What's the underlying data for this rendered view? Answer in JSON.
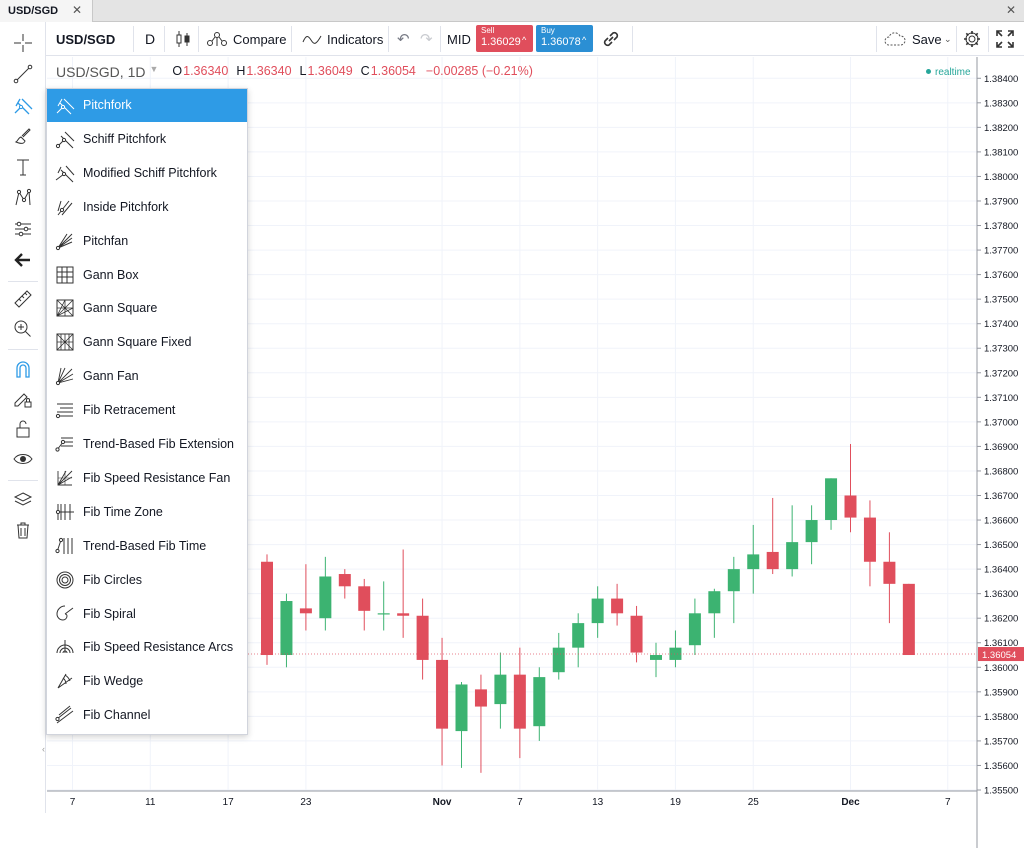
{
  "tab": {
    "title": "USD/SGD",
    "close": "✕"
  },
  "window_close": "✕",
  "toolbar": {
    "symbol": "USD/SGD",
    "interval": "D",
    "compare_label": "Compare",
    "indicators_label": "Indicators",
    "price_mode": "MID",
    "sell_label": "Sell",
    "sell_price": "1.36029",
    "buy_label": "Buy",
    "buy_price": "1.36078",
    "save_label": "Save"
  },
  "legend": {
    "title": "USD/SGD, 1D",
    "o_key": "O",
    "o_val": "1.36340",
    "h_key": "H",
    "h_val": "1.36340",
    "l_key": "L",
    "l_val": "1.36049",
    "c_key": "C",
    "c_val": "1.36054",
    "change": "−0.00285 (−0.21%)",
    "realtime": "realtime"
  },
  "menu": {
    "items": [
      {
        "label": "Pitchfork",
        "icon": "pitchfork-icon",
        "active": true
      },
      {
        "label": "Schiff Pitchfork",
        "icon": "schiff-pitchfork-icon"
      },
      {
        "label": "Modified Schiff Pitchfork",
        "icon": "modified-schiff-pitchfork-icon"
      },
      {
        "label": "Inside Pitchfork",
        "icon": "inside-pitchfork-icon"
      },
      {
        "label": "Pitchfan",
        "icon": "pitchfan-icon"
      },
      {
        "label": "Gann Box",
        "icon": "gann-box-icon"
      },
      {
        "label": "Gann Square",
        "icon": "gann-square-icon"
      },
      {
        "label": "Gann Square Fixed",
        "icon": "gann-square-fixed-icon"
      },
      {
        "label": "Gann Fan",
        "icon": "gann-fan-icon"
      },
      {
        "label": "Fib Retracement",
        "icon": "fib-retracement-icon"
      },
      {
        "label": "Trend-Based Fib Extension",
        "icon": "trend-fib-extension-icon"
      },
      {
        "label": "Fib Speed Resistance Fan",
        "icon": "fib-speed-fan-icon"
      },
      {
        "label": "Fib Time Zone",
        "icon": "fib-time-zone-icon"
      },
      {
        "label": "Trend-Based Fib Time",
        "icon": "trend-fib-time-icon"
      },
      {
        "label": "Fib Circles",
        "icon": "fib-circles-icon"
      },
      {
        "label": "Fib Spiral",
        "icon": "fib-spiral-icon"
      },
      {
        "label": "Fib Speed Resistance Arcs",
        "icon": "fib-arcs-icon"
      },
      {
        "label": "Fib Wedge",
        "icon": "fib-wedge-icon"
      },
      {
        "label": "Fib Channel",
        "icon": "fib-channel-icon"
      }
    ]
  },
  "colors": {
    "up": "#26a69a",
    "up_fill": "#3cb371",
    "down": "#e04e5c",
    "accent": "#2e9be6",
    "last_price": "#e04e5c"
  },
  "chart_data": {
    "type": "candlestick",
    "ylim": [
      1.355,
      1.3845
    ],
    "y_ticks": [
      "1.38400",
      "1.38300",
      "1.38200",
      "1.38100",
      "1.38000",
      "1.37900",
      "1.37800",
      "1.37700",
      "1.37600",
      "1.37500",
      "1.37400",
      "1.37300",
      "1.37200",
      "1.37100",
      "1.37000",
      "1.36900",
      "1.36800",
      "1.36700",
      "1.36600",
      "1.36500",
      "1.36400",
      "1.36300",
      "1.36200",
      "1.36100",
      "1.36000",
      "1.35900",
      "1.35800",
      "1.35700",
      "1.35600",
      "1.35500"
    ],
    "x_ticks": [
      {
        "label": "7",
        "i": 0
      },
      {
        "label": "11",
        "i": 4
      },
      {
        "label": "17",
        "i": 8
      },
      {
        "label": "23",
        "i": 12
      },
      {
        "label": "Nov",
        "i": 19,
        "bold": true
      },
      {
        "label": "7",
        "i": 23
      },
      {
        "label": "13",
        "i": 27
      },
      {
        "label": "19",
        "i": 31
      },
      {
        "label": "25",
        "i": 35
      },
      {
        "label": "Dec",
        "i": 40,
        "bold": true
      },
      {
        "label": "7",
        "i": 45
      }
    ],
    "last_price": "1.36054",
    "last_value": 1.36054,
    "candles": [
      {
        "i": 10,
        "o": 1.3643,
        "h": 1.3646,
        "l": 1.3601,
        "c": 1.3605
      },
      {
        "i": 11,
        "o": 1.3605,
        "h": 1.363,
        "l": 1.36,
        "c": 1.3627
      },
      {
        "i": 12,
        "o": 1.3624,
        "h": 1.3642,
        "l": 1.3615,
        "c": 1.3622
      },
      {
        "i": 13,
        "o": 1.362,
        "h": 1.3645,
        "l": 1.3615,
        "c": 1.3637
      },
      {
        "i": 14,
        "o": 1.3638,
        "h": 1.364,
        "l": 1.3628,
        "c": 1.3633
      },
      {
        "i": 15,
        "o": 1.3633,
        "h": 1.3636,
        "l": 1.3615,
        "c": 1.3623
      },
      {
        "i": 16,
        "o": 1.3622,
        "h": 1.3635,
        "l": 1.3615,
        "c": 1.3622
      },
      {
        "i": 17,
        "o": 1.3622,
        "h": 1.3648,
        "l": 1.3612,
        "c": 1.3621
      },
      {
        "i": 18,
        "o": 1.3621,
        "h": 1.3628,
        "l": 1.3595,
        "c": 1.3603
      },
      {
        "i": 19,
        "o": 1.3603,
        "h": 1.3612,
        "l": 1.356,
        "c": 1.3575
      },
      {
        "i": 20,
        "o": 1.3574,
        "h": 1.3594,
        "l": 1.3559,
        "c": 1.3593
      },
      {
        "i": 21,
        "o": 1.3591,
        "h": 1.3597,
        "l": 1.3557,
        "c": 1.3584
      },
      {
        "i": 22,
        "o": 1.3585,
        "h": 1.3606,
        "l": 1.3575,
        "c": 1.3597
      },
      {
        "i": 23,
        "o": 1.3597,
        "h": 1.3608,
        "l": 1.3563,
        "c": 1.3575
      },
      {
        "i": 24,
        "o": 1.3576,
        "h": 1.36,
        "l": 1.357,
        "c": 1.3596
      },
      {
        "i": 25,
        "o": 1.3598,
        "h": 1.3614,
        "l": 1.3595,
        "c": 1.3608
      },
      {
        "i": 26,
        "o": 1.3608,
        "h": 1.3622,
        "l": 1.36,
        "c": 1.3618
      },
      {
        "i": 27,
        "o": 1.3618,
        "h": 1.3633,
        "l": 1.3612,
        "c": 1.3628
      },
      {
        "i": 28,
        "o": 1.3628,
        "h": 1.3634,
        "l": 1.3617,
        "c": 1.3622
      },
      {
        "i": 29,
        "o": 1.3621,
        "h": 1.3625,
        "l": 1.3602,
        "c": 1.3606
      },
      {
        "i": 30,
        "o": 1.3603,
        "h": 1.361,
        "l": 1.3596,
        "c": 1.3605
      },
      {
        "i": 31,
        "o": 1.3603,
        "h": 1.3615,
        "l": 1.36,
        "c": 1.3608
      },
      {
        "i": 32,
        "o": 1.3609,
        "h": 1.3628,
        "l": 1.3605,
        "c": 1.3622
      },
      {
        "i": 33,
        "o": 1.3622,
        "h": 1.3632,
        "l": 1.3612,
        "c": 1.3631
      },
      {
        "i": 34,
        "o": 1.3631,
        "h": 1.3645,
        "l": 1.3618,
        "c": 1.364
      },
      {
        "i": 35,
        "o": 1.364,
        "h": 1.3658,
        "l": 1.363,
        "c": 1.3646
      },
      {
        "i": 36,
        "o": 1.3647,
        "h": 1.3669,
        "l": 1.3638,
        "c": 1.364
      },
      {
        "i": 37,
        "o": 1.364,
        "h": 1.3666,
        "l": 1.3637,
        "c": 1.3651
      },
      {
        "i": 38,
        "o": 1.3651,
        "h": 1.3666,
        "l": 1.3642,
        "c": 1.366
      },
      {
        "i": 39,
        "o": 1.366,
        "h": 1.3677,
        "l": 1.3656,
        "c": 1.3677
      },
      {
        "i": 40,
        "o": 1.367,
        "h": 1.3691,
        "l": 1.3655,
        "c": 1.3661
      },
      {
        "i": 41,
        "o": 1.3661,
        "h": 1.3668,
        "l": 1.3633,
        "c": 1.3643
      },
      {
        "i": 42,
        "o": 1.3643,
        "h": 1.3655,
        "l": 1.3618,
        "c": 1.3634
      },
      {
        "i": 43,
        "o": 1.3634,
        "h": 1.3634,
        "l": 1.3605,
        "c": 1.3605
      }
    ]
  }
}
